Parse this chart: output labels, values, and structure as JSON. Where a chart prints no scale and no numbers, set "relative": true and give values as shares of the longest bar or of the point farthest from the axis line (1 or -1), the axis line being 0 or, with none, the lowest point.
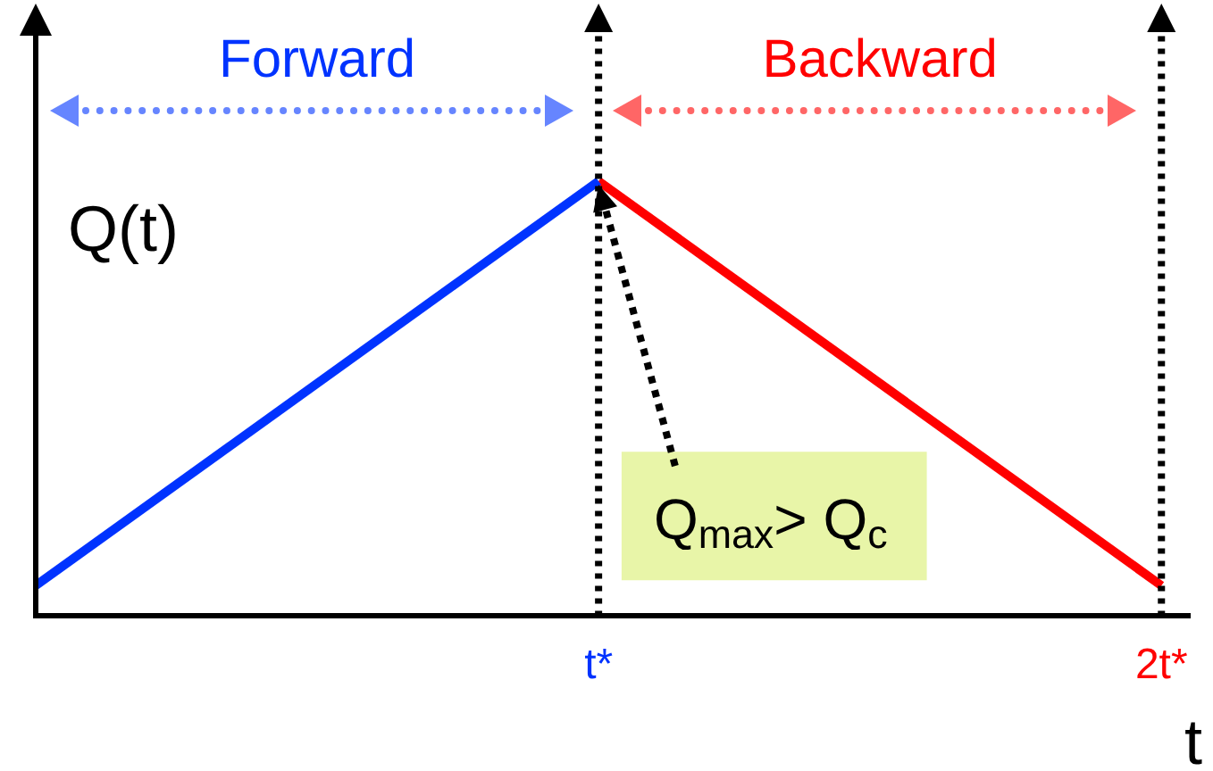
{
  "chart_data": {
    "type": "line",
    "relative": true,
    "xlabel": "t",
    "ylabel": "Q(t)",
    "categories": [
      null,
      "t*",
      "2t*"
    ],
    "series": [
      {
        "name": "Forward",
        "color": "#0033ff",
        "values": [
          0.07,
          1,
          null
        ]
      },
      {
        "name": "Backward",
        "color": "#ff0000",
        "values": [
          null,
          1,
          0.07
        ]
      }
    ],
    "ref_lines": [
      {
        "axis": "x",
        "value": "t*",
        "color": "#000000",
        "line_style": "dotted"
      },
      {
        "axis": "x",
        "value": "2t*",
        "color": "#000000",
        "line_style": "dotted"
      }
    ],
    "annotations": [
      "Q$_{max}$> Q$_{c}$"
    ],
    "legend": false,
    "grid": false
  }
}
